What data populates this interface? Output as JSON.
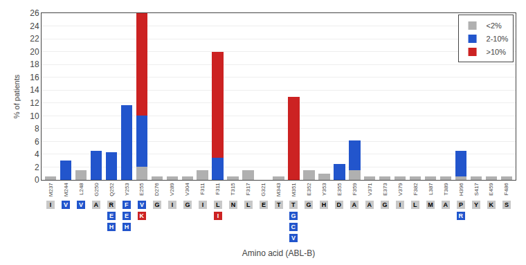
{
  "chart_data": {
    "type": "bar",
    "stacked": true,
    "categories": [
      "M237",
      "M244",
      "L248",
      "G250",
      "Q252",
      "Y253",
      "E255",
      "D276",
      "V289",
      "V304",
      "F311",
      "F311",
      "T315",
      "F317",
      "G321",
      "M343",
      "M351",
      "E352",
      "Y353",
      "E355",
      "F359",
      "V371",
      "E373",
      "V379",
      "F382",
      "L387",
      "T389",
      "H396",
      "S417",
      "E459",
      "F486"
    ],
    "series": [
      {
        "name": "<2%",
        "color": "#b0b0b0",
        "values": [
          0.5,
          0.0,
          1.5,
          0.0,
          0.0,
          0.0,
          2.0,
          0.5,
          0.5,
          0.5,
          1.5,
          0.0,
          0.5,
          1.5,
          0.0,
          0.5,
          0.0,
          1.5,
          1.0,
          0.0,
          1.5,
          0.5,
          0.5,
          0.5,
          0.5,
          0.5,
          0.5,
          0.5,
          0.5,
          0.5,
          0.5
        ]
      },
      {
        "name": "2-10%",
        "color": "#2255cc",
        "values": [
          0.0,
          3.0,
          0.0,
          4.5,
          4.3,
          11.7,
          8.0,
          0.0,
          0.0,
          0.0,
          0.0,
          3.5,
          0.0,
          0.0,
          0.0,
          0.0,
          0.0,
          0.0,
          0.0,
          2.5,
          4.7,
          0.0,
          0.0,
          0.0,
          0.0,
          0.0,
          0.0,
          4.0,
          0.0,
          0.0,
          0.0
        ]
      },
      {
        "name": ">10%",
        "color": "#cc2222",
        "values": [
          0.0,
          0.0,
          0.0,
          0.0,
          0.0,
          0.0,
          16.0,
          0.0,
          0.0,
          0.0,
          0.0,
          16.5,
          0.0,
          0.0,
          0.0,
          0.0,
          13.0,
          0.0,
          0.0,
          0.0,
          0.0,
          0.0,
          0.0,
          0.0,
          0.0,
          0.0,
          0.0,
          0.0,
          0.0,
          0.0,
          0.0
        ]
      }
    ],
    "xlabel": "Amino acid (ABL-B)",
    "ylabel": "% of patients",
    "ylim": [
      0,
      26
    ],
    "yticks": [
      0,
      2,
      4,
      6,
      8,
      10,
      12,
      14,
      16,
      18,
      20,
      22,
      24,
      26
    ],
    "grid": true,
    "legend": "upper right",
    "annotations": [
      {
        "x": 0,
        "text": "I",
        "color": "#c8c8c8"
      },
      {
        "x": 1,
        "text": "V",
        "color": "#2255cc"
      },
      {
        "x": 2,
        "text": "V",
        "color": "#2255cc"
      },
      {
        "x": 3,
        "text": "A",
        "color": "#c8c8c8"
      },
      {
        "x": 4,
        "text": "R",
        "color": "#c8c8c8"
      },
      {
        "x": 5,
        "text": "F",
        "color": "#2255cc"
      },
      {
        "x": 6,
        "text": "V",
        "color": "#2255cc"
      },
      {
        "x": 7,
        "text": "G",
        "color": "#c8c8c8"
      },
      {
        "x": 8,
        "text": "I",
        "color": "#c8c8c8"
      },
      {
        "x": 9,
        "text": "G",
        "color": "#c8c8c8"
      },
      {
        "x": 10,
        "text": "I",
        "color": "#c8c8c8"
      },
      {
        "x": 11,
        "text": "L",
        "color": "#c8c8c8"
      },
      {
        "x": 12,
        "text": "N",
        "color": "#c8c8c8"
      },
      {
        "x": 13,
        "text": "L",
        "color": "#c8c8c8"
      },
      {
        "x": 14,
        "text": "E",
        "color": "#c8c8c8"
      },
      {
        "x": 15,
        "text": "T",
        "color": "#c8c8c8"
      },
      {
        "x": 16,
        "text": "T",
        "color": "#c8c8c8"
      },
      {
        "x": 17,
        "text": "G",
        "color": "#c8c8c8"
      },
      {
        "x": 18,
        "text": "H",
        "color": "#c8c8c8"
      },
      {
        "x": 19,
        "text": "D",
        "color": "#c8c8c8"
      },
      {
        "x": 20,
        "text": "A",
        "color": "#c8c8c8"
      },
      {
        "x": 21,
        "text": "A",
        "color": "#c8c8c8"
      },
      {
        "x": 22,
        "text": "G",
        "color": "#c8c8c8"
      },
      {
        "x": 23,
        "text": "I",
        "color": "#c8c8c8"
      },
      {
        "x": 24,
        "text": "L",
        "color": "#c8c8c8"
      },
      {
        "x": 25,
        "text": "M",
        "color": "#c8c8c8"
      },
      {
        "x": 26,
        "text": "A",
        "color": "#c8c8c8"
      },
      {
        "x": 27,
        "text": "P",
        "color": "#c8c8c8"
      },
      {
        "x": 28,
        "text": "Y",
        "color": "#c8c8c8"
      },
      {
        "x": 29,
        "text": "K",
        "color": "#c8c8c8"
      },
      {
        "x": 30,
        "text": "S",
        "color": "#c8c8c8"
      },
      {
        "x": 4,
        "text": "E",
        "color": "#2255cc"
      },
      {
        "x": 5,
        "text": "E",
        "color": "#2255cc"
      },
      {
        "x": 6,
        "text": "K",
        "color": "#cc2222"
      },
      {
        "x": 11,
        "text": "I",
        "color": "#cc2222"
      },
      {
        "x": 16,
        "text": "G",
        "color": "#2255cc"
      },
      {
        "x": 27,
        "text": "R",
        "color": "#2255cc"
      },
      {
        "x": 4,
        "text": "H",
        "color": "#2255cc"
      },
      {
        "x": 16,
        "text": "C",
        "color": "#2255cc"
      },
      {
        "x": 5,
        "text": "H",
        "color": "#2255cc"
      },
      {
        "x": 16,
        "text": "V",
        "color": "#2255cc"
      }
    ]
  }
}
